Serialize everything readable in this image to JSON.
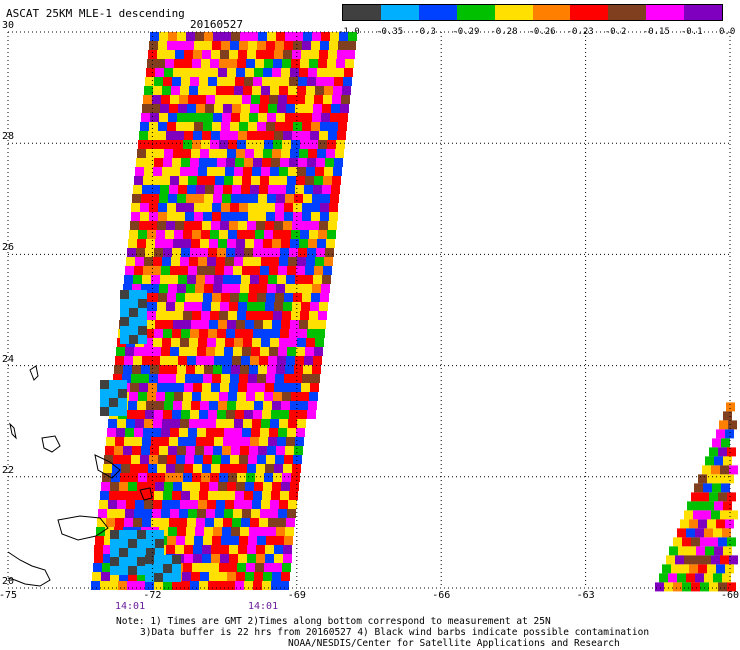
{
  "header": {
    "title": "ASCAT 25KM MLE-1 descending",
    "date": "20160527"
  },
  "colorbar": {
    "colors": [
      "#404040",
      "#00b0ff",
      "#0040ff",
      "#00c000",
      "#ffe000",
      "#ff8000",
      "#ff0000",
      "#804020",
      "#ff00ff",
      "#8000c0"
    ],
    "labels": [
      "-1.0",
      "-0.35",
      "-0.3",
      "-0.29",
      "-0.28",
      "-0.26",
      "-0.23",
      "-0.2",
      "-0.15",
      "-0.1",
      "0.0"
    ]
  },
  "axes": {
    "x_ticks": [
      "-75",
      "-72",
      "-69",
      "-66",
      "-63",
      "-60"
    ],
    "y_ticks": [
      "30",
      "28",
      "26",
      "24",
      "22",
      "20"
    ],
    "times": [
      "14:01",
      "14:01"
    ]
  },
  "notes": {
    "line1": "Note: 1) Times are GMT 2)Times along bottom correspond to measurement at 25N",
    "line2": "3)Data buffer is 22 hrs from 20160527 4) Black wind barbs indicate possible contamination",
    "line3": "NOAA/NESDIS/Center for Satellite Applications and Research"
  },
  "swaths": {
    "main": {
      "lat_top": 30,
      "lat_bottom": 20,
      "lon_left_top": -72.05,
      "lon_left_bottom": -73.3,
      "lon_right_top": -67.8,
      "lon_right_bottom": -69.25
    },
    "east": {
      "lat_top": 23.5,
      "lat_bottom": 20,
      "lon_left_top": -60,
      "lon_left_bottom": -61.6,
      "lon_right_top": -60,
      "lon_right_bottom": -60
    }
  },
  "map_extent": {
    "lon_min": -75,
    "lon_max": -60,
    "lat_min": 20,
    "lat_max": 30
  }
}
